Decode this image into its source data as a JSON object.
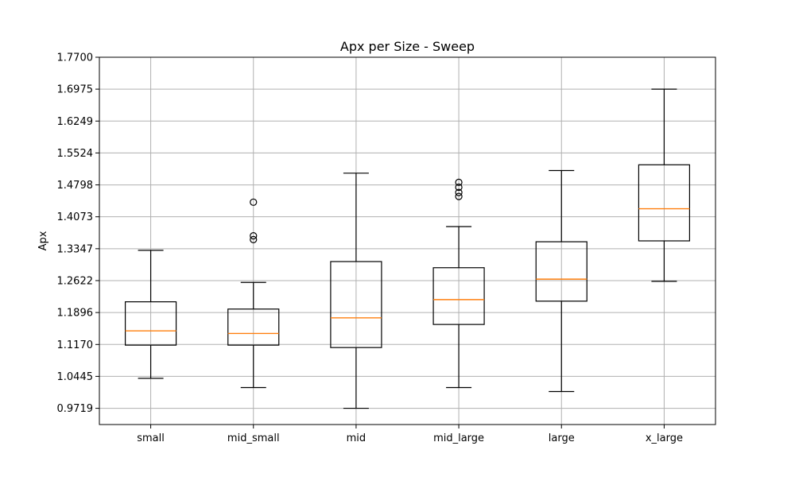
{
  "chart_data": {
    "type": "box",
    "title": "Apx per Size - Sweep",
    "xlabel": "",
    "ylabel": "Apx",
    "categories": [
      "small",
      "mid_small",
      "mid",
      "mid_large",
      "large",
      "x_large"
    ],
    "yticks": [
      "0.9719",
      "1.0445",
      "1.1170",
      "1.1896",
      "1.2622",
      "1.3347",
      "1.4073",
      "1.4798",
      "1.5524",
      "1.6249",
      "1.6975",
      "1.7700"
    ],
    "ylim": [
      0.935,
      1.77
    ],
    "grid": true,
    "boxes": [
      {
        "category": "small",
        "whisker_low": 1.04,
        "q1": 1.1155,
        "median": 1.148,
        "q3": 1.214,
        "whisker_high": 1.331,
        "outliers": []
      },
      {
        "category": "mid_small",
        "whisker_low": 1.019,
        "q1": 1.1155,
        "median": 1.142,
        "q3": 1.1975,
        "whisker_high": 1.258,
        "outliers": [
          1.3555,
          1.364,
          1.4405
        ]
      },
      {
        "category": "mid",
        "whisker_low": 0.9719,
        "q1": 1.11,
        "median": 1.1775,
        "q3": 1.3055,
        "whisker_high": 1.5065,
        "outliers": []
      },
      {
        "category": "mid_large",
        "whisker_low": 1.019,
        "q1": 1.1625,
        "median": 1.219,
        "q3": 1.2915,
        "whisker_high": 1.385,
        "outliers": [
          1.4535,
          1.4625,
          1.4745,
          1.4855
        ]
      },
      {
        "category": "large",
        "whisker_low": 1.01,
        "q1": 1.2155,
        "median": 1.2655,
        "q3": 1.3505,
        "whisker_high": 1.5125,
        "outliers": []
      },
      {
        "category": "x_large",
        "whisker_low": 1.2605,
        "q1": 1.3525,
        "median": 1.4255,
        "q3": 1.5255,
        "whisker_high": 1.6975,
        "outliers": []
      }
    ],
    "colors": {
      "box": "#000000",
      "median": "#ff7f0e",
      "grid": "#b0b0b0"
    }
  }
}
